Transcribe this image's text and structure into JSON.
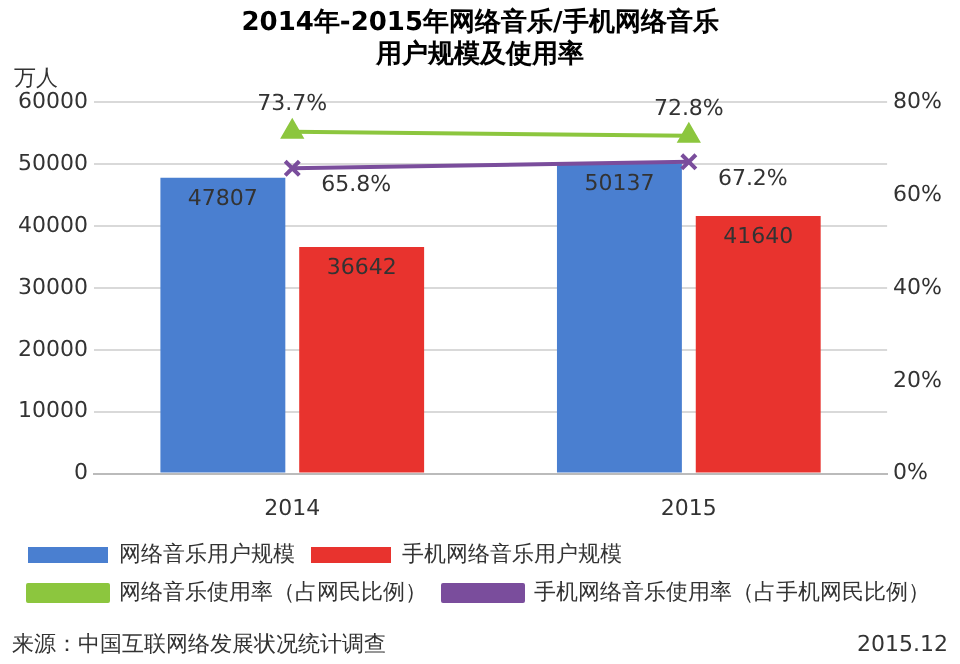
{
  "chart_data": {
    "type": "bar",
    "title": "2014年-2015年网络音乐/手机网络音乐用户规模及使用率",
    "ylabel": "万人",
    "categories": [
      "2014",
      "2015"
    ],
    "series": [
      {
        "name": "网络音乐用户规模",
        "color": "#4a7fd0",
        "values": [
          47807,
          50137
        ],
        "value_labels": [
          "47807",
          "50137"
        ]
      },
      {
        "name": "手机网络音乐用户规模",
        "color": "#e8332e",
        "values": [
          36642,
          41640
        ],
        "value_labels": [
          "36642",
          "41640"
        ]
      },
      {
        "name": "网络音乐使用率（占网民比例）",
        "type": "line",
        "axis": "y2",
        "marker": "triangle",
        "color": "#8cc63e",
        "values": [
          73.7,
          72.8
        ],
        "value_labels": [
          "73.7%",
          "72.8%"
        ]
      },
      {
        "name": "手机网络音乐使用率（占手机网民比例）",
        "type": "line",
        "axis": "y2",
        "marker": "cross",
        "color": "#7a4d9c",
        "values": [
          65.8,
          67.2
        ],
        "value_labels": [
          "65.8%",
          "67.2%"
        ]
      }
    ],
    "ylim": [
      0,
      60000
    ],
    "yticks": [
      0,
      10000,
      20000,
      30000,
      40000,
      50000,
      60000
    ],
    "y2lim": [
      0,
      80
    ],
    "y2ticks": [
      {
        "value": 0,
        "label": "0%"
      },
      {
        "value": 20,
        "label": "20%"
      },
      {
        "value": 40,
        "label": "40%"
      },
      {
        "value": 60,
        "label": "60%"
      },
      {
        "value": 80,
        "label": "80%"
      }
    ],
    "grid": "y",
    "legend": "bottom",
    "annotations": [
      "来源：中国互联网络发展状况统计调查",
      "2015.12"
    ]
  }
}
